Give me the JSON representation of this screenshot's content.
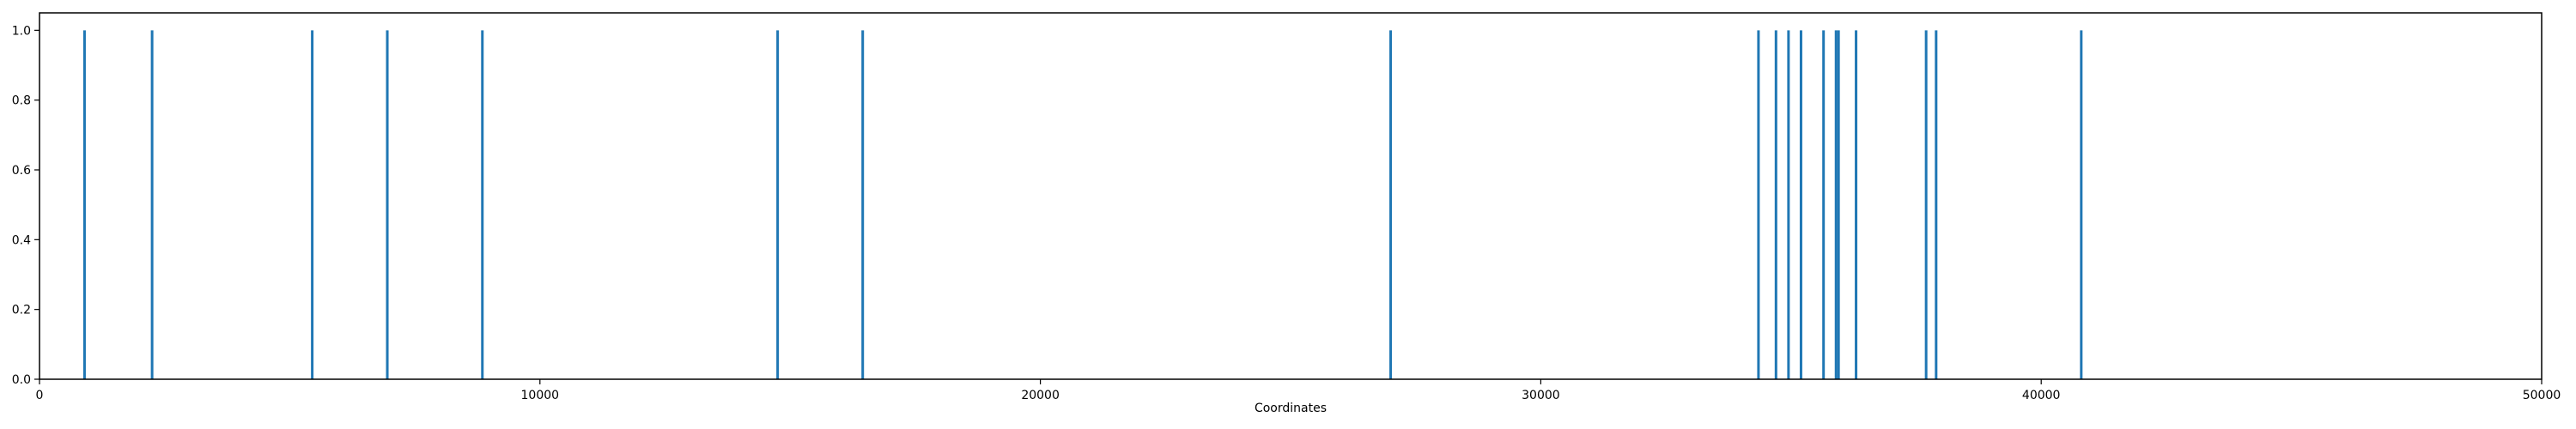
{
  "chart_data": {
    "type": "bar",
    "title": "",
    "xlabel": "Coordinates",
    "ylabel": "",
    "xlim": [
      0,
      50000
    ],
    "ylim": [
      0,
      1.05
    ],
    "xticks": [
      0,
      10000,
      20000,
      30000,
      40000,
      50000
    ],
    "xtick_labels": [
      "0",
      "10000",
      "20000",
      "30000",
      "40000",
      "50000"
    ],
    "yticks": [
      0.0,
      0.2,
      0.4,
      0.6,
      0.8,
      1.0
    ],
    "ytick_labels": [
      "0.0",
      "0.2",
      "0.4",
      "0.6",
      "0.8",
      "1.0"
    ],
    "grid": false,
    "color": "#1f77b4",
    "x": [
      900,
      2250,
      5450,
      6950,
      8850,
      14750,
      16450,
      27000,
      34350,
      34700,
      34950,
      35200,
      35650,
      35900,
      35950,
      36300,
      37700,
      37900,
      40800
    ],
    "values": [
      1,
      1,
      1,
      1,
      1,
      1,
      1,
      1,
      1,
      1,
      1,
      1,
      1,
      1,
      1,
      1,
      1,
      1,
      1
    ]
  }
}
